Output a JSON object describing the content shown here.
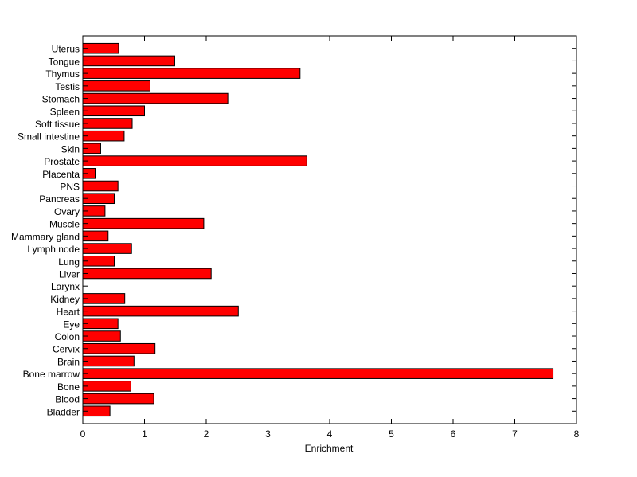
{
  "chart_data": {
    "type": "bar",
    "orientation": "horizontal",
    "title": "",
    "xlabel": "Enrichment",
    "ylabel": "",
    "xlim": [
      0,
      8
    ],
    "xticks": [
      0,
      1,
      2,
      3,
      4,
      5,
      6,
      7,
      8
    ],
    "grid": false,
    "bar_color": "#ff0000",
    "bar_edge_color": "#000000",
    "categories": [
      "Bladder",
      "Blood",
      "Bone",
      "Bone marrow",
      "Brain",
      "Cervix",
      "Colon",
      "Eye",
      "Heart",
      "Kidney",
      "Larynx",
      "Liver",
      "Lung",
      "Lymph node",
      "Mammary gland",
      "Muscle",
      "Ovary",
      "Pancreas",
      "PNS",
      "Placenta",
      "Prostate",
      "Skin",
      "Small intestine",
      "Soft tissue",
      "Spleen",
      "Stomach",
      "Testis",
      "Thymus",
      "Tongue",
      "Uterus"
    ],
    "values": [
      0.44,
      1.15,
      0.78,
      7.62,
      0.83,
      1.17,
      0.61,
      0.57,
      2.52,
      0.68,
      0.0,
      2.08,
      0.51,
      0.79,
      0.41,
      1.96,
      0.36,
      0.51,
      0.57,
      0.2,
      3.63,
      0.29,
      0.67,
      0.8,
      1.0,
      2.35,
      1.09,
      3.52,
      1.49,
      0.58
    ]
  }
}
